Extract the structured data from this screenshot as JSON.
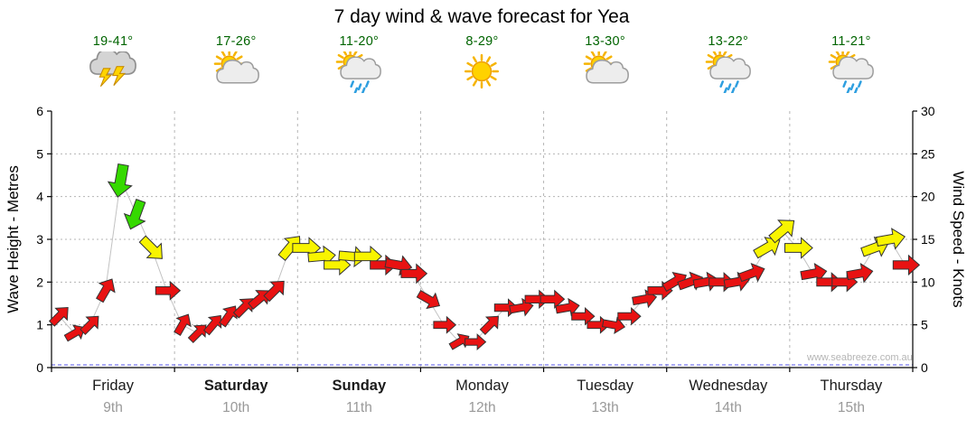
{
  "title": "7 day wind & wave forecast for Yea",
  "watermark": "www.seabreeze.com.au",
  "colors": {
    "red": "#e81212",
    "yellow": "#f8f400",
    "green": "#35d900",
    "arrow_outline": "#333333",
    "grid": "#b5b5b5",
    "trend_line": "#c2c2c2",
    "zero_line": "#5555ee",
    "axis": "#000000",
    "temp_text": "#006400",
    "day_text": "#1a1a1a",
    "date_text": "#999999"
  },
  "days": [
    {
      "name": "Friday",
      "date": "9th",
      "temps": "19-41°",
      "icon": "thunderstorm",
      "bold": false
    },
    {
      "name": "Saturday",
      "date": "10th",
      "temps": "17-26°",
      "icon": "partly-cloudy",
      "bold": true
    },
    {
      "name": "Sunday",
      "date": "11th",
      "temps": "11-20°",
      "icon": "sun-shower",
      "bold": true
    },
    {
      "name": "Monday",
      "date": "12th",
      "temps": "8-29°",
      "icon": "sunny",
      "bold": false
    },
    {
      "name": "Tuesday",
      "date": "13th",
      "temps": "13-30°",
      "icon": "partly-cloudy",
      "bold": false
    },
    {
      "name": "Wednesday",
      "date": "14th",
      "temps": "13-22°",
      "icon": "sun-shower",
      "bold": false
    },
    {
      "name": "Thursday",
      "date": "15th",
      "temps": "11-21°",
      "icon": "sun-shower",
      "bold": false
    }
  ],
  "chart_data": {
    "type": "wind_arrows",
    "slots_per_day": 8,
    "left_axis": {
      "label": "Wave Height - Metres",
      "min": 0,
      "max": 6,
      "ticks": [
        0,
        1,
        2,
        3,
        4,
        5,
        6
      ]
    },
    "right_axis": {
      "label": "Wind Speed - Knots",
      "min": 0,
      "max": 30,
      "ticks": [
        0,
        5,
        10,
        15,
        20,
        25,
        30
      ]
    },
    "grid": "dotted horizontal each metre, dashed vertical each day boundary",
    "days": [
      {
        "label": "Friday",
        "knots": [
          6,
          4,
          5,
          9,
          22,
          18,
          14,
          9
        ],
        "dirs": [
          45,
          60,
          45,
          30,
          190,
          200,
          135,
          90
        ],
        "colors": [
          "red",
          "red",
          "red",
          "red",
          "green",
          "green",
          "yellow",
          "red"
        ]
      },
      {
        "label": "Saturday",
        "knots": [
          5,
          4,
          5,
          6,
          7,
          8,
          9,
          14
        ],
        "dirs": [
          30,
          45,
          40,
          35,
          45,
          50,
          45,
          40
        ],
        "colors": [
          "red",
          "red",
          "red",
          "red",
          "red",
          "red",
          "red",
          "yellow"
        ]
      },
      {
        "label": "Sunday",
        "knots": [
          14,
          13,
          12,
          13,
          13,
          12,
          12,
          11
        ],
        "dirs": [
          90,
          85,
          90,
          95,
          90,
          90,
          100,
          90
        ],
        "colors": [
          "yellow",
          "yellow",
          "yellow",
          "yellow",
          "yellow",
          "red",
          "red",
          "red"
        ]
      },
      {
        "label": "Monday",
        "knots": [
          8,
          5,
          3,
          3,
          5,
          7,
          7,
          8
        ],
        "dirs": [
          120,
          90,
          60,
          90,
          45,
          90,
          80,
          90
        ],
        "colors": [
          "red",
          "red",
          "red",
          "red",
          "red",
          "red",
          "red",
          "red"
        ]
      },
      {
        "label": "Tuesday",
        "knots": [
          8,
          7,
          6,
          5,
          5,
          6,
          8,
          9
        ],
        "dirs": [
          90,
          80,
          90,
          90,
          100,
          90,
          80,
          90
        ],
        "colors": [
          "red",
          "red",
          "red",
          "red",
          "red",
          "red",
          "red",
          "red"
        ]
      },
      {
        "label": "Wednesday",
        "knots": [
          10,
          10,
          10,
          10,
          10,
          11,
          14,
          16
        ],
        "dirs": [
          60,
          70,
          80,
          90,
          80,
          70,
          60,
          50
        ],
        "colors": [
          "red",
          "red",
          "red",
          "red",
          "red",
          "red",
          "yellow",
          "yellow"
        ]
      },
      {
        "label": "Thursday",
        "knots": [
          14,
          11,
          10,
          10,
          11,
          14,
          15,
          12
        ],
        "dirs": [
          90,
          80,
          90,
          90,
          80,
          70,
          80,
          90
        ],
        "colors": [
          "yellow",
          "red",
          "red",
          "red",
          "red",
          "yellow",
          "yellow",
          "red"
        ]
      }
    ]
  }
}
